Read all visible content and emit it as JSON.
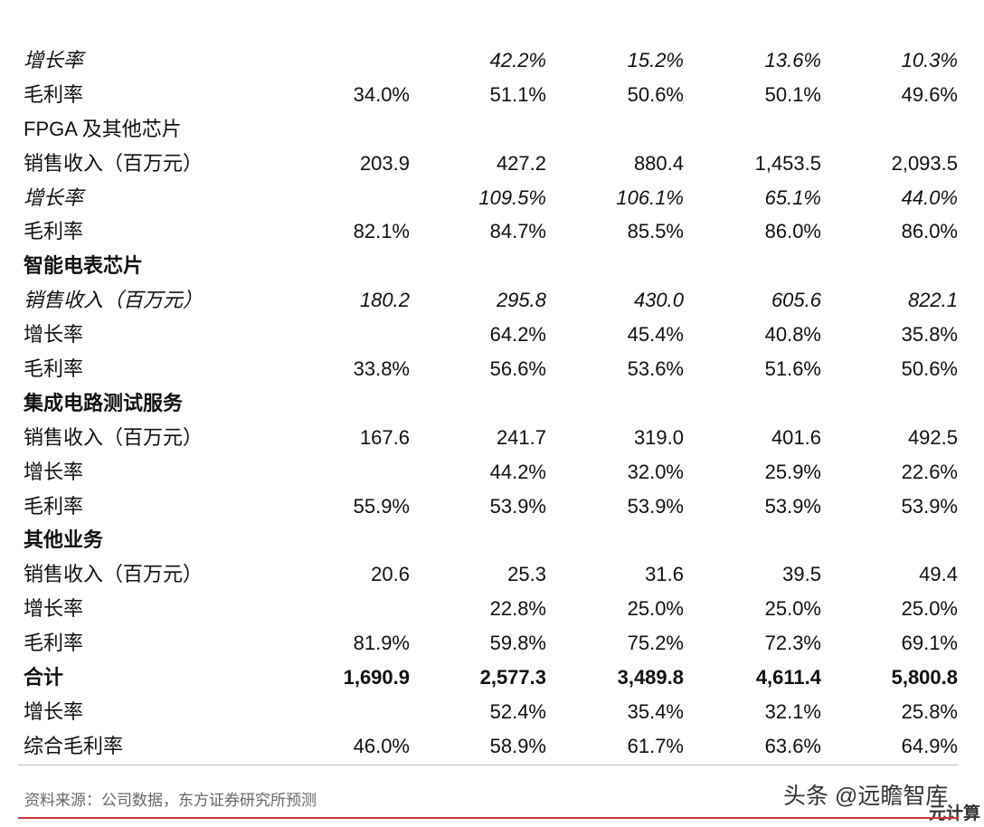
{
  "rows": [
    {
      "label": "增长率",
      "values": [
        "",
        "42.2%",
        "15.2%",
        "13.6%",
        "10.3%"
      ],
      "style": "italic"
    },
    {
      "label": "毛利率",
      "values": [
        "34.0%",
        "51.1%",
        "50.6%",
        "50.1%",
        "49.6%"
      ],
      "style": ""
    },
    {
      "label": "FPGA 及其他芯片",
      "values": [
        "",
        "",
        "",
        "",
        ""
      ],
      "style": ""
    },
    {
      "label": "销售收入（百万元）",
      "values": [
        "203.9",
        "427.2",
        "880.4",
        "1,453.5",
        "2,093.5"
      ],
      "style": ""
    },
    {
      "label": "增长率",
      "values": [
        "",
        "109.5%",
        "106.1%",
        "65.1%",
        "44.0%"
      ],
      "style": "italic"
    },
    {
      "label": "毛利率",
      "values": [
        "82.1%",
        "84.7%",
        "85.5%",
        "86.0%",
        "86.0%"
      ],
      "style": ""
    },
    {
      "label": "智能电表芯片",
      "values": [
        "",
        "",
        "",
        "",
        ""
      ],
      "style": "bold"
    },
    {
      "label": "销售收入（百万元）",
      "values": [
        "180.2",
        "295.8",
        "430.0",
        "605.6",
        "822.1"
      ],
      "style": "italic"
    },
    {
      "label": "增长率",
      "values": [
        "",
        "64.2%",
        "45.4%",
        "40.8%",
        "35.8%"
      ],
      "style": ""
    },
    {
      "label": "毛利率",
      "values": [
        "33.8%",
        "56.6%",
        "53.6%",
        "51.6%",
        "50.6%"
      ],
      "style": ""
    },
    {
      "label": "集成电路测试服务",
      "values": [
        "",
        "",
        "",
        "",
        ""
      ],
      "style": "bold"
    },
    {
      "label": "销售收入（百万元）",
      "values": [
        "167.6",
        "241.7",
        "319.0",
        "401.6",
        "492.5"
      ],
      "style": ""
    },
    {
      "label": "增长率",
      "values": [
        "",
        "44.2%",
        "32.0%",
        "25.9%",
        "22.6%"
      ],
      "style": ""
    },
    {
      "label": "毛利率",
      "values": [
        "55.9%",
        "53.9%",
        "53.9%",
        "53.9%",
        "53.9%"
      ],
      "style": ""
    },
    {
      "label": "其他业务",
      "values": [
        "",
        "",
        "",
        "",
        ""
      ],
      "style": "bold"
    },
    {
      "label": "销售收入（百万元）",
      "values": [
        "20.6",
        "25.3",
        "31.6",
        "39.5",
        "49.4"
      ],
      "style": ""
    },
    {
      "label": "增长率",
      "values": [
        "",
        "22.8%",
        "25.0%",
        "25.0%",
        "25.0%"
      ],
      "style": ""
    },
    {
      "label": "毛利率",
      "values": [
        "81.9%",
        "59.8%",
        "75.2%",
        "72.3%",
        "69.1%"
      ],
      "style": ""
    },
    {
      "label": "合计",
      "values": [
        "1,690.9",
        "2,577.3",
        "3,489.8",
        "4,611.4",
        "5,800.8"
      ],
      "style": "bold"
    },
    {
      "label": "增长率",
      "values": [
        "",
        "52.4%",
        "35.4%",
        "32.1%",
        "25.8%"
      ],
      "style": ""
    },
    {
      "label": "综合毛利率",
      "values": [
        "46.0%",
        "58.9%",
        "61.7%",
        "63.6%",
        "64.9%"
      ],
      "style": ""
    }
  ],
  "source": "资料来源：公司数据，东方证券研究所预测",
  "watermark": "头条 @远瞻智库",
  "watermark2": "元计算"
}
